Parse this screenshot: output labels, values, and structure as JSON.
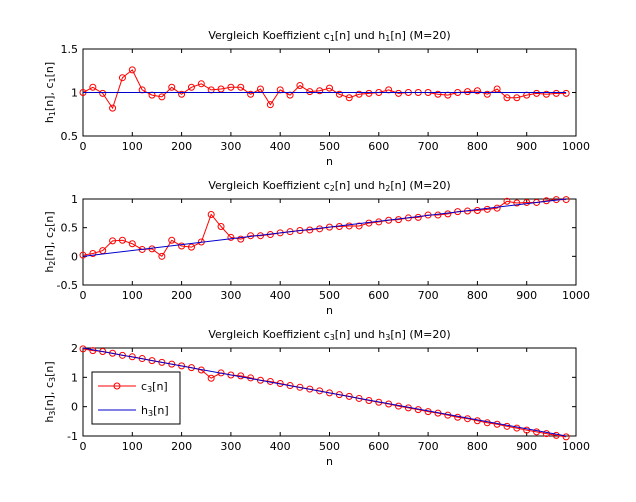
{
  "chart_data": [
    {
      "type": "line",
      "title": {
        "pre": "Vergleich Koeffizient c",
        "s1": "1",
        "mid": "[n] und h",
        "s2": "1",
        "post": "[n] (M=20)"
      },
      "xlabel": "n",
      "ylabel": {
        "a": "h",
        "s1": "1",
        "b": "[n], c",
        "s2": "1",
        "c": "[n]"
      },
      "xlim": [
        0,
        1000
      ],
      "ylim": [
        0.5,
        1.5
      ],
      "xticks": [
        "0",
        "100",
        "200",
        "300",
        "400",
        "500",
        "600",
        "700",
        "800",
        "900",
        "1000"
      ],
      "yticks": [
        "0.5",
        "1",
        "1.5"
      ],
      "grid": false,
      "x": [
        0,
        20,
        40,
        60,
        80,
        100,
        120,
        140,
        160,
        180,
        200,
        220,
        240,
        260,
        280,
        300,
        320,
        340,
        360,
        380,
        400,
        420,
        440,
        460,
        480,
        500,
        520,
        540,
        560,
        580,
        600,
        620,
        640,
        660,
        680,
        700,
        720,
        740,
        760,
        780,
        800,
        820,
        840,
        860,
        880,
        900,
        920,
        940,
        960,
        980
      ],
      "series": [
        {
          "name": "c1",
          "color": "#ff0000",
          "marker": "circle",
          "values": [
            1.0,
            1.06,
            0.99,
            0.82,
            1.17,
            1.26,
            1.03,
            0.97,
            0.95,
            1.06,
            0.98,
            1.06,
            1.1,
            1.03,
            1.04,
            1.06,
            1.06,
            0.98,
            1.04,
            0.86,
            1.03,
            0.97,
            1.08,
            1.01,
            1.02,
            1.05,
            0.98,
            0.94,
            0.98,
            0.99,
            1.0,
            1.03,
            0.99,
            1.0,
            1.0,
            1.0,
            0.98,
            0.97,
            1.0,
            1.01,
            1.02,
            0.98,
            1.04,
            0.94,
            0.94,
            0.97,
            0.99,
            0.98,
            0.99,
            0.99
          ]
        },
        {
          "name": "h1",
          "color": "#0000cc",
          "marker": "none",
          "values": [
            1.0,
            1.0
          ],
          "x": [
            0,
            980
          ]
        }
      ]
    },
    {
      "type": "line",
      "title": {
        "pre": "Vergleich Koeffizient c",
        "s1": "2",
        "mid": "[n] und h",
        "s2": "2",
        "post": "[n] (M=20)"
      },
      "xlabel": "n",
      "ylabel": {
        "a": "h",
        "s1": "2",
        "b": "[n], c",
        "s2": "2",
        "c": "[n]"
      },
      "xlim": [
        0,
        1000
      ],
      "ylim": [
        -0.5,
        1
      ],
      "xticks": [
        "0",
        "100",
        "200",
        "300",
        "400",
        "500",
        "600",
        "700",
        "800",
        "900",
        "1000"
      ],
      "yticks": [
        "-0.5",
        "0",
        "0.5",
        "1"
      ],
      "grid": false,
      "x": [
        0,
        20,
        40,
        60,
        80,
        100,
        120,
        140,
        160,
        180,
        200,
        220,
        240,
        260,
        280,
        300,
        320,
        340,
        360,
        380,
        400,
        420,
        440,
        460,
        480,
        500,
        520,
        540,
        560,
        580,
        600,
        620,
        640,
        660,
        680,
        700,
        720,
        740,
        760,
        780,
        800,
        820,
        840,
        860,
        880,
        900,
        920,
        940,
        960,
        980
      ],
      "series": [
        {
          "name": "c2",
          "color": "#ff0000",
          "marker": "circle",
          "values": [
            0.02,
            0.05,
            0.1,
            0.27,
            0.28,
            0.22,
            0.12,
            0.13,
            0.0,
            0.28,
            0.18,
            0.16,
            0.25,
            0.73,
            0.52,
            0.33,
            0.3,
            0.36,
            0.36,
            0.38,
            0.41,
            0.43,
            0.45,
            0.46,
            0.48,
            0.51,
            0.52,
            0.53,
            0.53,
            0.58,
            0.6,
            0.63,
            0.64,
            0.67,
            0.68,
            0.72,
            0.72,
            0.74,
            0.78,
            0.79,
            0.8,
            0.82,
            0.84,
            0.96,
            0.93,
            0.94,
            0.94,
            0.97,
            0.99,
            0.99
          ]
        },
        {
          "name": "h2",
          "color": "#0000cc",
          "marker": "none",
          "values": [
            0.0,
            1.0
          ],
          "x": [
            0,
            980
          ]
        }
      ]
    },
    {
      "type": "line",
      "title": {
        "pre": "Vergleich Koeffizient c",
        "s1": "3",
        "mid": "[n] und h",
        "s2": "3",
        "post": "[n] (M=20)"
      },
      "xlabel": "n",
      "ylabel": {
        "a": "h",
        "s1": "3",
        "b": "[n], c",
        "s2": "3",
        "c": "[n]"
      },
      "xlim": [
        0,
        1000
      ],
      "ylim": [
        -1,
        2
      ],
      "xticks": [
        "0",
        "100",
        "200",
        "300",
        "400",
        "500",
        "600",
        "700",
        "800",
        "900",
        "1000"
      ],
      "yticks": [
        "-1",
        "0",
        "1",
        "2"
      ],
      "grid": false,
      "legend": {
        "location": "lower-left",
        "entries": [
          {
            "pre": "c",
            "sub": "3",
            "post": "[n]"
          },
          {
            "pre": "h",
            "sub": "3",
            "post": "[n]"
          }
        ]
      },
      "x": [
        0,
        20,
        40,
        60,
        80,
        100,
        120,
        140,
        160,
        180,
        200,
        220,
        240,
        260,
        280,
        300,
        320,
        340,
        360,
        380,
        400,
        420,
        440,
        460,
        480,
        500,
        520,
        540,
        560,
        580,
        600,
        620,
        640,
        660,
        680,
        700,
        720,
        740,
        760,
        780,
        800,
        820,
        840,
        860,
        880,
        900,
        920,
        940,
        960,
        980
      ],
      "series": [
        {
          "name": "c3",
          "color": "#ff0000",
          "marker": "circle",
          "values": [
            1.97,
            1.91,
            1.88,
            1.82,
            1.75,
            1.7,
            1.64,
            1.57,
            1.51,
            1.45,
            1.39,
            1.33,
            1.25,
            0.97,
            1.15,
            1.08,
            1.05,
            0.98,
            0.9,
            0.86,
            0.79,
            0.72,
            0.66,
            0.6,
            0.54,
            0.47,
            0.41,
            0.35,
            0.28,
            0.21,
            0.15,
            0.09,
            0.02,
            -0.04,
            -0.1,
            -0.17,
            -0.22,
            -0.29,
            -0.36,
            -0.41,
            -0.48,
            -0.55,
            -0.6,
            -0.67,
            -0.73,
            -0.8,
            -0.86,
            -0.92,
            -0.98,
            -1.03
          ]
        },
        {
          "name": "h3",
          "color": "#0000cc",
          "marker": "none",
          "values": [
            2.0,
            -1.0
          ],
          "x": [
            0,
            980
          ]
        }
      ]
    }
  ]
}
